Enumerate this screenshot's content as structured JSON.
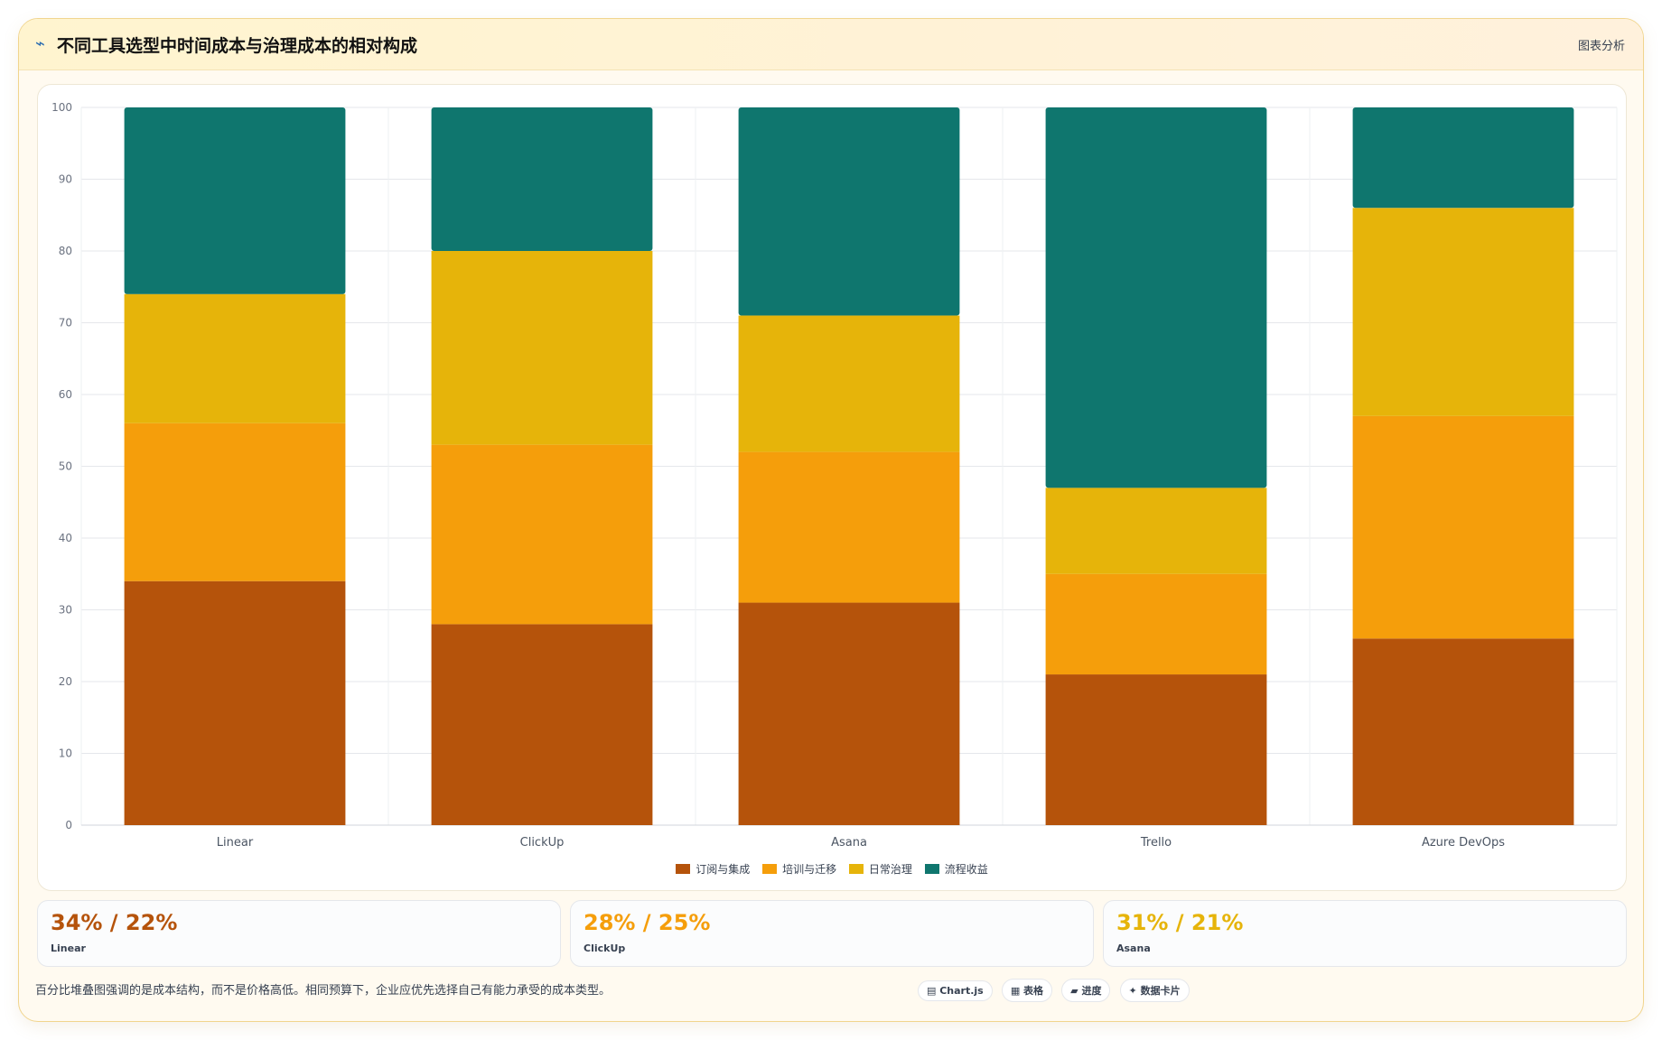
{
  "header": {
    "icon": "trend-icon",
    "title": "不同工具选型中时间成本与治理成本的相对构成",
    "action_label": "图表分析"
  },
  "colors": {
    "subscription": "#b5530b",
    "training": "#f59e0b",
    "governance": "#e6b40a",
    "benefit": "#0f766e"
  },
  "chart_data": {
    "type": "bar",
    "stacked": true,
    "categories": [
      "Linear",
      "ClickUp",
      "Asana",
      "Trello",
      "Azure DevOps"
    ],
    "series": [
      {
        "name": "订阅与集成",
        "values": [
          34,
          28,
          31,
          21,
          26
        ],
        "color": "#b5530b"
      },
      {
        "name": "培训与迁移",
        "values": [
          22,
          25,
          21,
          14,
          31
        ],
        "color": "#f59e0b"
      },
      {
        "name": "日常治理",
        "values": [
          18,
          27,
          19,
          12,
          29
        ],
        "color": "#e6b40a"
      },
      {
        "name": "流程收益",
        "values": [
          26,
          20,
          29,
          53,
          14
        ],
        "color": "#0f766e"
      }
    ],
    "ylim": [
      0,
      100
    ],
    "yticks": [
      0,
      10,
      20,
      30,
      40,
      50,
      60,
      70,
      80,
      90,
      100
    ],
    "grid": true,
    "legend": "bottom"
  },
  "stats": [
    {
      "value": "34% / 22%",
      "label": "Linear",
      "color": "#b5530b"
    },
    {
      "value": "28% / 25%",
      "label": "ClickUp",
      "color": "#f59e0b"
    },
    {
      "value": "31% / 21%",
      "label": "Asana",
      "color": "#e6b40a"
    }
  ],
  "footer": {
    "note": "百分比堆叠图强调的是成本结构，而不是价格高低。相同预算下，企业应优先选择自己有能力承受的成本类型。",
    "chips": [
      "▤ Chart.js",
      "▦ 表格",
      "▰ 进度",
      "✦ 数据卡片"
    ]
  }
}
